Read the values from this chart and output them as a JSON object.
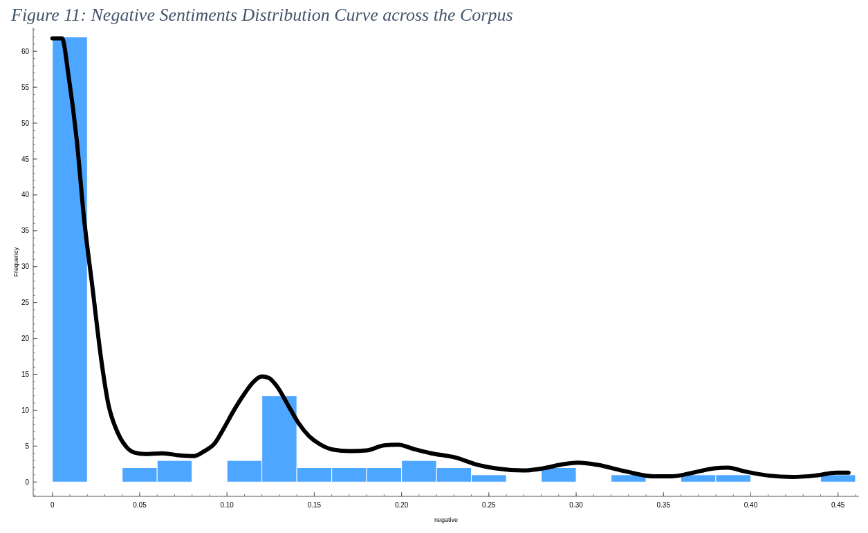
{
  "chart_data": {
    "type": "histogram",
    "title": "Figure 11: Negative Sentiments Distribution Curve across the Corpus",
    "xlabel": "negative",
    "ylabel": "Frequency",
    "bins": [
      0,
      0.02,
      0.04,
      0.06,
      0.08,
      0.1,
      0.12,
      0.14,
      0.16,
      0.18,
      0.2,
      0.22,
      0.24,
      0.26,
      0.28,
      0.3,
      0.32,
      0.34,
      0.36,
      0.38,
      0.4,
      0.42,
      0.44,
      0.46
    ],
    "values": [
      62,
      0,
      2,
      3,
      0,
      3,
      12,
      2,
      2,
      2,
      3,
      2,
      1,
      0,
      2,
      0,
      1,
      0,
      1,
      1,
      0,
      0,
      1
    ],
    "color": "#4da6ff",
    "series": [
      {
        "type": "line",
        "color": "#000000",
        "x": [
          0,
          0.0055,
          0.0093,
          0.014,
          0.018,
          0.023,
          0.028,
          0.032,
          0.037,
          0.042,
          0.047,
          0.053,
          0.063,
          0.073,
          0.081,
          0.087,
          0.093,
          0.098,
          0.104,
          0.11,
          0.115,
          0.12,
          0.124,
          0.129,
          0.135,
          0.141,
          0.147,
          0.153,
          0.161,
          0.17,
          0.18,
          0.19,
          0.198,
          0.207,
          0.217,
          0.231,
          0.242,
          0.254,
          0.27,
          0.281,
          0.293,
          0.301,
          0.312,
          0.328,
          0.344,
          0.355,
          0.367,
          0.379,
          0.387,
          0.396,
          0.41,
          0.424,
          0.437,
          0.449,
          0.456
        ],
        "values": [
          61.8,
          61.8,
          56.5,
          47.5,
          37,
          27,
          17,
          10.9,
          7.1,
          5,
          4.1,
          3.9,
          4,
          3.7,
          3.6,
          4.3,
          5.4,
          7.4,
          10,
          12.3,
          13.9,
          14.7,
          14.5,
          13.2,
          10.7,
          8.2,
          6.4,
          5.3,
          4.5,
          4.3,
          4.4,
          5.1,
          5.2,
          4.6,
          4,
          3.4,
          2.5,
          1.9,
          1.6,
          1.9,
          2.5,
          2.7,
          2.4,
          1.5,
          0.8,
          0.8,
          1.3,
          1.9,
          2,
          1.5,
          0.9,
          0.7,
          0.9,
          1.3,
          1.3
        ]
      }
    ],
    "xlim": [
      -0.011,
      0.462
    ],
    "ylim": [
      -2,
      63.3
    ],
    "xticks": [
      0,
      0.05,
      {
        "value": 0.1,
        "label": "0.10"
      },
      0.15,
      {
        "value": 0.2,
        "label": "0.20"
      },
      0.25,
      {
        "value": 0.3,
        "label": "0.30"
      },
      0.35,
      {
        "value": 0.4,
        "label": "0.40"
      },
      0.45
    ],
    "yticks": [
      0,
      5,
      10,
      15,
      20,
      25,
      30,
      35,
      40,
      45,
      50,
      55,
      60
    ],
    "grid": false
  }
}
